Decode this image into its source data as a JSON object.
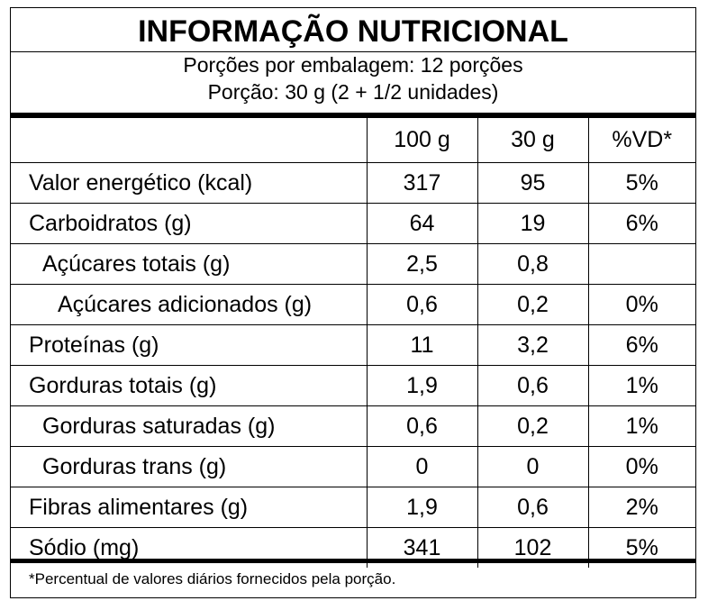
{
  "label": {
    "title": "INFORMAÇÃO NUTRICIONAL",
    "servings_per_package": "Porções por embalagem: 12 porções",
    "serving_size": "Porção: 30 g (2 + 1/2 unidades)"
  },
  "columns": [
    "100 g",
    "30 g",
    "%VD*"
  ],
  "rows": [
    {
      "name": "Valor energético (kcal)",
      "per100g": "317",
      "perServing": "95",
      "dv": "5%"
    },
    {
      "name": "Carboidratos (g)",
      "per100g": "64",
      "perServing": "19",
      "dv": "6%"
    },
    {
      "name": "Açúcares totais (g)",
      "per100g": "2,5",
      "perServing": "0,8",
      "dv": ""
    },
    {
      "name": "Açúcares adicionados (g)",
      "per100g": "0,6",
      "perServing": "0,2",
      "dv": "0%"
    },
    {
      "name": "Proteínas (g)",
      "per100g": "11",
      "perServing": "3,2",
      "dv": "6%"
    },
    {
      "name": "Gorduras totais (g)",
      "per100g": "1,9",
      "perServing": "0,6",
      "dv": "1%"
    },
    {
      "name": "Gorduras saturadas (g)",
      "per100g": "0,6",
      "perServing": "0,2",
      "dv": "1%"
    },
    {
      "name": "Gorduras trans (g)",
      "per100g": "0",
      "perServing": "0",
      "dv": "0%"
    },
    {
      "name": "Fibras alimentares (g)",
      "per100g": "1,9",
      "perServing": "0,6",
      "dv": "2%"
    },
    {
      "name": "Sódio (mg)",
      "per100g": "341",
      "perServing": "102",
      "dv": "5%"
    }
  ],
  "footnote": "*Percentual de valores diários fornecidos pela porção."
}
